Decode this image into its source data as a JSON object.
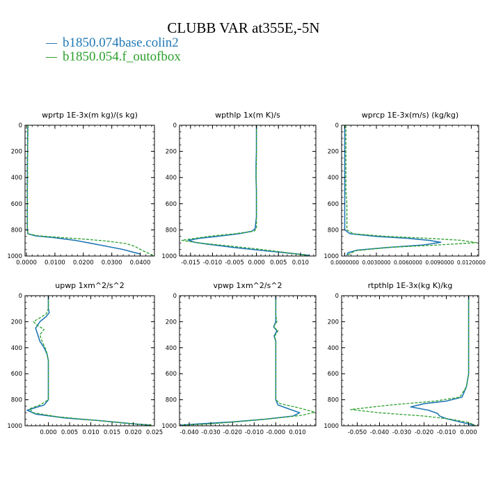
{
  "title": "CLUBB VAR at355E,-5N",
  "legend": [
    {
      "label": "b1850.074base.colin2",
      "color": "#1f77b4"
    },
    {
      "label": "b1850.054.f_outofbox",
      "color": "#2ca02c"
    }
  ],
  "colors": {
    "series1": "#1f77b4",
    "series2": "#2ca02c"
  },
  "chart_data": [
    {
      "type": "line",
      "title": "wprtp  1E-3x(m kg)/(s kg)",
      "xlim": [
        -0.0005,
        0.045
      ],
      "ylim": [
        1000,
        0
      ],
      "xticks": [
        0,
        0.01,
        0.02,
        0.03,
        0.04
      ],
      "xtick_labels": [
        "0.0000",
        "0.0100",
        "0.0200",
        "0.0300",
        "0.0400"
      ],
      "yticks": [
        0,
        200,
        400,
        600,
        800,
        1000
      ],
      "series": [
        {
          "name": "b1850.074base.colin2",
          "style": "solid",
          "x": [
            0.0005,
            0.0004,
            0.0004,
            0.0003,
            0.0003,
            0.0003,
            0.0003,
            0.0003,
            0.0003,
            0.0005,
            0.003,
            0.01,
            0.017,
            0.022,
            0.028,
            0.034,
            0.04
          ],
          "y": [
            0,
            100,
            200,
            300,
            400,
            500,
            600,
            700,
            800,
            830,
            845,
            860,
            880,
            900,
            925,
            950,
            985
          ]
        },
        {
          "name": "b1850.054.f_outofbox",
          "style": "dashed",
          "x": [
            0.0005,
            0.0005,
            0.0004,
            0.0004,
            0.0004,
            0.0003,
            0.0003,
            0.0003,
            0.0003,
            0.0006,
            0.004,
            0.012,
            0.02,
            0.028,
            0.035,
            0.038,
            0.041,
            0.0445
          ],
          "y": [
            0,
            100,
            200,
            300,
            400,
            500,
            600,
            700,
            800,
            830,
            845,
            858,
            870,
            885,
            905,
            925,
            960,
            995
          ]
        }
      ]
    },
    {
      "type": "line",
      "title": "wpthlp  1x(m K)/s",
      "xlim": [
        -0.0175,
        0.0135
      ],
      "ylim": [
        1000,
        0
      ],
      "xticks": [
        -0.015,
        -0.01,
        -0.005,
        0,
        0.005,
        0.01
      ],
      "xtick_labels": [
        "-0.015",
        "-0.010",
        "-0.005",
        "0.000",
        "0.005",
        "0.010"
      ],
      "yticks": [
        0,
        200,
        400,
        600,
        800,
        1000
      ],
      "series": [
        {
          "name": "b1850.074base.colin2",
          "style": "solid",
          "x": [
            0.0,
            0.0,
            0.0,
            -0.0001,
            -0.0001,
            0.0,
            0.0,
            0.0,
            -0.0003,
            -0.001,
            -0.004,
            -0.009,
            -0.013,
            -0.0155,
            -0.014,
            -0.011,
            -0.005,
            0.002,
            0.008,
            0.012
          ],
          "y": [
            0,
            100,
            200,
            300,
            400,
            500,
            600,
            700,
            790,
            810,
            830,
            850,
            865,
            880,
            895,
            910,
            935,
            960,
            980,
            995
          ]
        },
        {
          "name": "b1850.054.f_outofbox",
          "style": "dashed",
          "x": [
            0.0,
            0.0,
            0.0,
            0.0,
            -0.0001,
            0.0,
            0.0,
            0.0,
            0.0,
            -0.0005,
            -0.005,
            -0.011,
            -0.017,
            -0.013,
            -0.007,
            0.0,
            0.006,
            0.0115
          ],
          "y": [
            0,
            100,
            200,
            300,
            400,
            500,
            600,
            700,
            790,
            810,
            830,
            850,
            880,
            900,
            920,
            945,
            970,
            995
          ]
        }
      ]
    },
    {
      "type": "line",
      "title": "wprcp  1E-3x(m/s) (kg/kg)",
      "xlim": [
        -0.0003,
        0.0127
      ],
      "ylim": [
        1000,
        0
      ],
      "xticks": [
        0,
        0.003,
        0.006,
        0.009,
        0.012
      ],
      "xtick_labels": [
        "0.0000000",
        "0.0030000",
        "0.0060000",
        "0.0090000",
        "0.0120000"
      ],
      "yticks": [
        0,
        200,
        400,
        600,
        800,
        1000
      ],
      "series": [
        {
          "name": "b1850.074base.colin2",
          "style": "solid",
          "x": [
            0,
            0,
            0,
            0,
            0,
            0,
            0,
            0,
            0,
            0.0005,
            0.003,
            0.006,
            0.008,
            0.0091,
            0.0075,
            0.004,
            0.0012,
            0.0003,
            0.0002
          ],
          "y": [
            0,
            100,
            200,
            300,
            400,
            500,
            600,
            700,
            800,
            830,
            850,
            865,
            880,
            895,
            915,
            935,
            955,
            975,
            995
          ]
        },
        {
          "name": "b1850.054.f_outofbox",
          "style": "dashed",
          "x": [
            0.0001,
            0.0001,
            0.0001,
            0.0001,
            0.0001,
            0.0001,
            0.0002,
            0.0002,
            0.0002,
            0.0008,
            0.004,
            0.008,
            0.011,
            0.0125,
            0.009,
            0.004,
            0.001,
            0.0002
          ],
          "y": [
            0,
            100,
            200,
            300,
            400,
            500,
            600,
            700,
            800,
            830,
            850,
            865,
            880,
            898,
            915,
            935,
            960,
            995
          ]
        }
      ]
    },
    {
      "type": "line",
      "title": "upwp  1xm^2/s^2",
      "xlim": [
        -0.0055,
        0.025
      ],
      "ylim": [
        1000,
        0
      ],
      "xticks": [
        0,
        0.005,
        0.01,
        0.015,
        0.02,
        0.025
      ],
      "xtick_labels": [
        "0.000",
        "0.005",
        "0.010",
        "0.015",
        "0.020",
        "0.025"
      ],
      "yticks": [
        0,
        200,
        400,
        600,
        800,
        1000
      ],
      "series": [
        {
          "name": "b1850.074base.colin2",
          "style": "solid",
          "x": [
            0.0,
            0.0,
            0.0002,
            -0.0005,
            -0.002,
            -0.003,
            -0.0025,
            -0.002,
            -0.001,
            -0.0003,
            0.0,
            0.0,
            0.0,
            0.0,
            -0.001,
            -0.003,
            -0.005,
            -0.003,
            0.004,
            0.012,
            0.02,
            0.024
          ],
          "y": [
            0,
            100,
            130,
            160,
            200,
            250,
            300,
            350,
            400,
            450,
            500,
            600,
            700,
            800,
            840,
            860,
            880,
            910,
            940,
            960,
            985,
            995
          ]
        },
        {
          "name": "b1850.054.f_outofbox",
          "style": "dashed",
          "x": [
            0.0,
            0.0,
            -0.0005,
            -0.002,
            -0.0035,
            -0.0025,
            -0.001,
            -0.002,
            -0.0015,
            -0.0005,
            0.0,
            0.0,
            0.0,
            0.0,
            -0.002,
            -0.0045,
            -0.0035,
            0.002,
            0.01,
            0.018,
            0.0245
          ],
          "y": [
            0,
            100,
            140,
            170,
            200,
            230,
            260,
            300,
            350,
            420,
            500,
            600,
            700,
            800,
            840,
            870,
            900,
            930,
            955,
            980,
            995
          ]
        }
      ]
    },
    {
      "type": "line",
      "title": "vpwp  1xm^2/s^2",
      "xlim": [
        -0.0445,
        0.0185
      ],
      "ylim": [
        1000,
        0
      ],
      "xticks": [
        -0.04,
        -0.03,
        -0.02,
        -0.01,
        0,
        0.01
      ],
      "xtick_labels": [
        "-0.040",
        "-0.030",
        "-0.020",
        "-0.010",
        "-0.000",
        "0.010"
      ],
      "yticks": [
        0,
        200,
        400,
        600,
        800,
        1000
      ],
      "series": [
        {
          "name": "b1850.074base.colin2",
          "style": "solid",
          "x": [
            0.0,
            0.0,
            0.0,
            0.0,
            -0.001,
            0.0005,
            -0.0008,
            0.0,
            0.0,
            0.0,
            0.0,
            0.001,
            0.006,
            0.011,
            0.008,
            -0.005,
            -0.02,
            -0.035,
            -0.044
          ],
          "y": [
            0,
            100,
            150,
            200,
            240,
            270,
            310,
            350,
            400,
            600,
            800,
            840,
            870,
            900,
            925,
            950,
            970,
            985,
            995
          ]
        },
        {
          "name": "b1850.054.f_outofbox",
          "style": "dashed",
          "x": [
            0.0,
            0.0,
            0.0,
            0.0005,
            -0.001,
            0.001,
            -0.0005,
            0.0,
            0.0,
            0.0,
            0.0,
            0.002,
            0.01,
            0.018,
            0.012,
            -0.002,
            -0.015,
            -0.03,
            -0.043
          ],
          "y": [
            0,
            100,
            150,
            200,
            240,
            270,
            310,
            350,
            400,
            600,
            800,
            830,
            860,
            895,
            920,
            945,
            965,
            985,
            995
          ]
        }
      ]
    },
    {
      "type": "line",
      "title": "rtpthlp  1E-3x(kg K)/kg",
      "xlim": [
        -0.057,
        0.0045
      ],
      "ylim": [
        1000,
        0
      ],
      "xticks": [
        -0.05,
        -0.04,
        -0.03,
        -0.02,
        -0.01,
        0
      ],
      "xtick_labels": [
        "-0.050",
        "-0.040",
        "-0.030",
        "-0.020",
        "-0.010",
        "0.000"
      ],
      "yticks": [
        0,
        200,
        400,
        600,
        800,
        1000
      ],
      "series": [
        {
          "name": "b1850.074base.colin2",
          "style": "solid",
          "x": [
            0.0,
            0.0,
            0.0,
            0.0,
            0.0,
            0.0,
            0.0,
            -0.001,
            -0.003,
            -0.01,
            -0.02,
            -0.026,
            -0.018,
            -0.014,
            -0.013,
            -0.01,
            -0.004,
            0.001,
            0.003
          ],
          "y": [
            0,
            100,
            200,
            300,
            400,
            500,
            600,
            700,
            780,
            810,
            830,
            855,
            880,
            905,
            925,
            945,
            970,
            990,
            998
          ]
        },
        {
          "name": "b1850.054.f_outofbox",
          "style": "dashed",
          "x": [
            0.0,
            0.0,
            0.0,
            0.0,
            0.0,
            0.0,
            0.0,
            -0.001,
            -0.004,
            -0.015,
            -0.035,
            -0.053,
            -0.04,
            -0.02,
            -0.008,
            0.0,
            0.003
          ],
          "y": [
            0,
            100,
            200,
            300,
            400,
            500,
            600,
            700,
            780,
            810,
            840,
            875,
            900,
            925,
            950,
            975,
            998
          ]
        }
      ]
    }
  ]
}
